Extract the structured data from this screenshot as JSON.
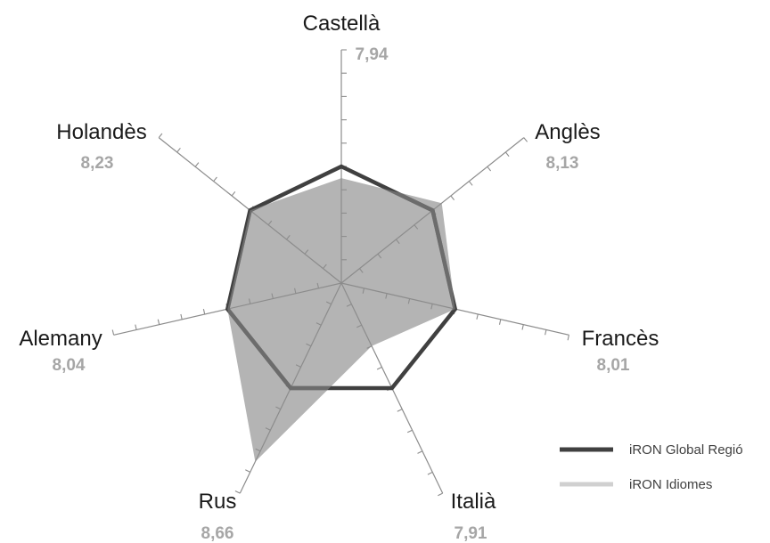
{
  "chart_data": {
    "type": "radar",
    "title": "",
    "categories": [
      "Castellà",
      "Anglès",
      "Francès",
      "Italià",
      "Rus",
      "Alemany",
      "Holandès"
    ],
    "category_values": [
      "7,94",
      "8,13",
      "8,01",
      "7,91",
      "8,66",
      "8,04",
      "8,23"
    ],
    "series": [
      {
        "name": "iRON Global Regió",
        "values": [
          5.0,
          5.0,
          5.0,
          5.0,
          5.0,
          5.0,
          5.0
        ],
        "color": "#404040",
        "style": "line"
      },
      {
        "name": "iRON Idiomes",
        "values": [
          4.5,
          5.5,
          5.0,
          3.0,
          8.5,
          5.0,
          5.0
        ],
        "color": "#bfbfbf",
        "style": "filled-area"
      }
    ],
    "axis_range": [
      0,
      10
    ],
    "ticks_per_axis": 10,
    "legend_position": "bottom-right",
    "grid": false
  }
}
